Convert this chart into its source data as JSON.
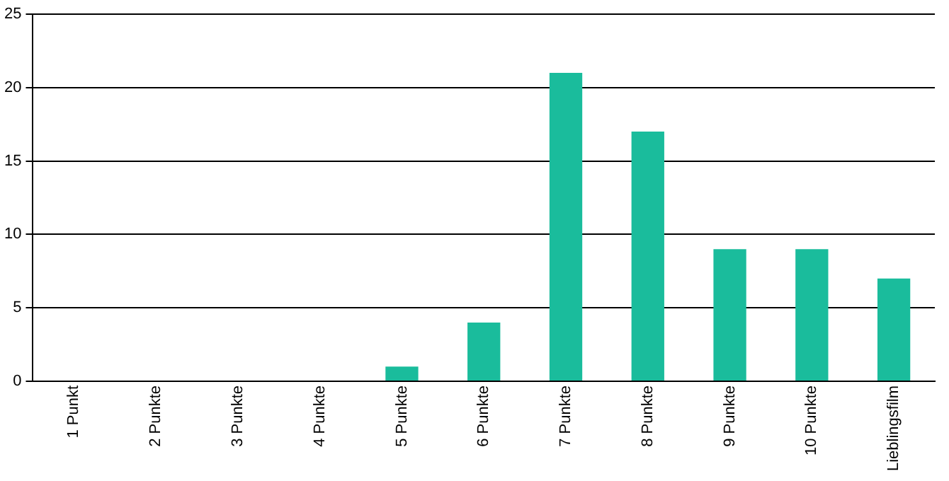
{
  "chart_data": {
    "type": "bar",
    "categories": [
      "1 Punkt",
      "2 Punkte",
      "3 Punkte",
      "4 Punkte",
      "5 Punkte",
      "6 Punkte",
      "7 Punkte",
      "8 Punkte",
      "9 Punkte",
      "10 Punkte",
      "Lieblingsfilm"
    ],
    "values": [
      0,
      0,
      0,
      0,
      1,
      4,
      21,
      17,
      9,
      9,
      7
    ],
    "color": "#1abc9c",
    "ylim": [
      0,
      25
    ],
    "yticks": [
      0,
      5,
      10,
      15,
      20,
      25
    ],
    "grid": "y"
  }
}
